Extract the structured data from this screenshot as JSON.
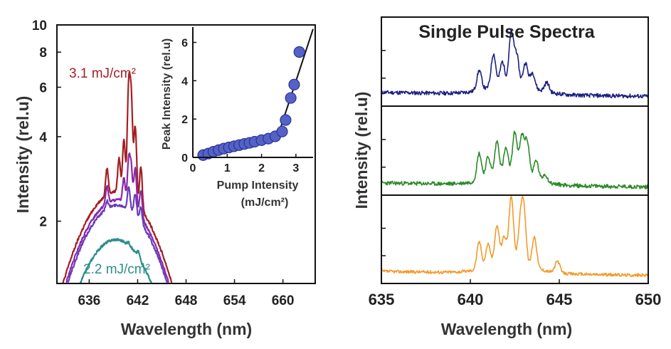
{
  "colors": {
    "curve_31": "#a31f23",
    "curve_purple": "#8a2aa8",
    "curve_violet": "#6a3cba",
    "curve_22": "#2c8e8c",
    "marker_fill": "#5462c8",
    "marker_edge": "#2a3490",
    "fit_line": "#111111",
    "sp_top": "#1a1f80",
    "sp_mid": "#2a8a28",
    "sp_bot": "#f39a2a"
  },
  "chart_data": [
    {
      "type": "line",
      "name": "left-main",
      "xlabel": "Wavelength (nm)",
      "ylabel": "Intensity (rel.u)",
      "yscale": "log",
      "xlim": [
        632,
        664
      ],
      "ylim": [
        1.2,
        10
      ],
      "xticks": [
        636,
        642,
        648,
        654,
        660
      ],
      "xtick_labels": [
        "636",
        "642",
        "648",
        "654",
        "660"
      ],
      "yticks": [
        2,
        4,
        6,
        8,
        10
      ],
      "ytick_labels": [
        "2",
        "4",
        "6",
        "8",
        "10"
      ],
      "annotations": [
        "3.1 mJ/cm²",
        "2.2 mJ/cm²"
      ],
      "series": [
        {
          "color_key": "curve_31",
          "center": 639.5,
          "sigma": 5.5,
          "amplitude": 2.55,
          "base": 0,
          "peaks": [
            [
              640.9,
              3.6
            ],
            [
              641.2,
              3.0
            ],
            [
              641.7,
              2.0
            ],
            [
              640.3,
              1.4
            ],
            [
              639.7,
              0.8
            ],
            [
              638.2,
              0.6
            ],
            [
              642.4,
              0.9
            ]
          ]
        },
        {
          "color_key": "curve_purple",
          "center": 639.5,
          "sigma": 5.45,
          "amplitude": 2.38,
          "base": 0,
          "peaks": [
            [
              640.9,
              1.0
            ],
            [
              641.2,
              0.8
            ],
            [
              641.7,
              0.9
            ],
            [
              640.3,
              0.5
            ],
            [
              638.2,
              0.35
            ],
            [
              642.4,
              0.5
            ]
          ]
        },
        {
          "color_key": "curve_violet",
          "center": 639.5,
          "sigma": 5.45,
          "amplitude": 2.28,
          "base": 0,
          "peaks": [
            [
              640.9,
              0.45
            ],
            [
              641.7,
              0.4
            ],
            [
              642.4,
              0.25
            ],
            [
              638.2,
              0.15
            ]
          ]
        },
        {
          "color_key": "curve_22",
          "center": 639.3,
          "sigma": 5.2,
          "amplitude": 1.72,
          "base": 0,
          "peaks": [
            [
              642.1,
              0.07
            ],
            [
              640.9,
              0.04
            ]
          ]
        }
      ]
    },
    {
      "type": "scatter",
      "name": "inset",
      "xlabel": "Pump Intensity",
      "xlabel_unit": "(mJ/cm²)",
      "ylabel": "Peak Intensity (rel.u)",
      "xlim": [
        0,
        3.5
      ],
      "ylim": [
        0,
        6.8
      ],
      "xticks": [
        0,
        1,
        2,
        3
      ],
      "xtick_labels": [
        "0",
        "1",
        "2",
        "3"
      ],
      "yticks": [
        0,
        2,
        4,
        6
      ],
      "ytick_labels": [
        "0",
        "2",
        "4",
        "6"
      ],
      "x": [
        0.3,
        0.45,
        0.6,
        0.75,
        0.9,
        1.05,
        1.2,
        1.35,
        1.5,
        1.65,
        1.8,
        2.0,
        2.2,
        2.4,
        2.6,
        2.7,
        2.85,
        2.95,
        3.1
      ],
      "y": [
        0.12,
        0.2,
        0.3,
        0.38,
        0.46,
        0.52,
        0.58,
        0.64,
        0.7,
        0.76,
        0.82,
        0.9,
        0.98,
        1.1,
        1.35,
        1.95,
        3.1,
        3.8,
        5.5
      ],
      "fit_lines": [
        {
          "x": [
            0.25,
            2.5
          ],
          "y": [
            0.0,
            1.25
          ]
        },
        {
          "x": [
            2.5,
            3.5
          ],
          "y": [
            1.25,
            6.7
          ]
        }
      ]
    },
    {
      "type": "line",
      "name": "single-pulse",
      "title": "Single Pulse Spectra",
      "xlabel": "Wavelength (nm)",
      "ylabel": "Intensity (rel.u)",
      "xlim": [
        635,
        650
      ],
      "xticks": [
        635,
        640,
        645,
        650
      ],
      "xtick_labels": [
        "635",
        "640",
        "645",
        "650"
      ],
      "panels": [
        {
          "color_key": "sp_top",
          "base": 0.12,
          "noise": 0.025,
          "seed": 11,
          "peaks": [
            [
              642.3,
              0.65
            ],
            [
              641.3,
              0.42
            ],
            [
              642.6,
              0.38
            ],
            [
              640.5,
              0.25
            ],
            [
              643.1,
              0.3
            ],
            [
              643.5,
              0.2
            ],
            [
              644.3,
              0.12
            ],
            [
              641.8,
              0.3
            ]
          ]
        },
        {
          "color_key": "sp_mid",
          "base": 0.1,
          "noise": 0.025,
          "seed": 23,
          "peaks": [
            [
              640.5,
              0.35
            ],
            [
              641.0,
              0.28
            ],
            [
              641.5,
              0.45
            ],
            [
              642.0,
              0.35
            ],
            [
              642.5,
              0.55
            ],
            [
              642.9,
              0.5
            ],
            [
              643.2,
              0.45
            ],
            [
              643.7,
              0.25
            ],
            [
              644.2,
              0.1
            ]
          ]
        },
        {
          "color_key": "sp_bot",
          "base": 0.1,
          "noise": 0.02,
          "seed": 37,
          "peaks": [
            [
              642.3,
              0.85
            ],
            [
              641.5,
              0.5
            ],
            [
              643.0,
              0.7
            ],
            [
              640.5,
              0.35
            ],
            [
              641.0,
              0.3
            ],
            [
              642.8,
              0.45
            ],
            [
              643.6,
              0.4
            ],
            [
              644.9,
              0.15
            ],
            [
              641.9,
              0.35
            ]
          ]
        }
      ]
    }
  ]
}
